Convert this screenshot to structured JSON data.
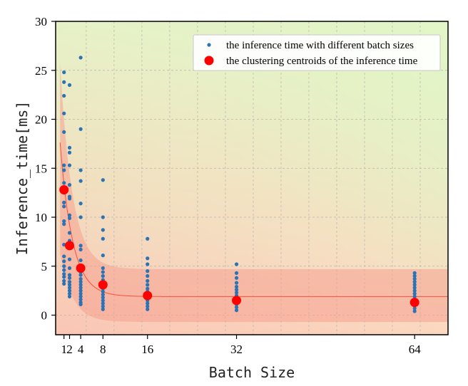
{
  "chart_data": {
    "type": "scatter",
    "xlabel": "Batch Size",
    "ylabel": "Inference_time[ms]",
    "xlim": [
      -0.5,
      70
    ],
    "ylim": [
      -2,
      30
    ],
    "xticks": [
      1,
      2,
      4,
      8,
      16,
      32,
      64
    ],
    "xtick_labels": [
      "1",
      "2",
      "4",
      "8",
      "16",
      "32",
      "64"
    ],
    "yticks": [
      0,
      5,
      10,
      15,
      20,
      25,
      30
    ],
    "ytick_labels": [
      "0",
      "5",
      "10",
      "15",
      "20",
      "25",
      "30"
    ],
    "grid": true,
    "legend_position": "top-right",
    "series": [
      {
        "name": "the inference time with different batch sizes",
        "color": "#2b73b5",
        "points": [
          [
            1,
            24.8
          ],
          [
            1,
            23.8
          ],
          [
            1,
            22.4
          ],
          [
            1,
            20.6
          ],
          [
            1,
            18.7
          ],
          [
            1,
            15.3
          ],
          [
            1,
            14.8
          ],
          [
            1,
            13.5
          ],
          [
            1,
            12.5
          ],
          [
            1,
            11.5
          ],
          [
            1,
            11.1
          ],
          [
            1,
            9.6
          ],
          [
            1,
            9.3
          ],
          [
            1,
            7.2
          ],
          [
            1,
            6.0
          ],
          [
            1,
            5.5
          ],
          [
            1,
            5.0
          ],
          [
            1,
            4.6
          ],
          [
            1,
            4.2
          ],
          [
            1,
            3.9
          ],
          [
            1,
            3.5
          ],
          [
            1,
            3.2
          ],
          [
            2,
            23.5
          ],
          [
            2,
            17.1
          ],
          [
            2,
            16.6
          ],
          [
            2,
            15.3
          ],
          [
            2,
            13.3
          ],
          [
            2,
            12.1
          ],
          [
            2,
            11.9
          ],
          [
            2,
            10.2
          ],
          [
            2,
            9.9
          ],
          [
            2,
            8.4
          ],
          [
            2,
            7.6
          ],
          [
            2,
            5.7
          ],
          [
            2,
            4.8
          ],
          [
            2,
            4.1
          ],
          [
            2,
            3.8
          ],
          [
            2,
            3.4
          ],
          [
            2,
            3.1
          ],
          [
            2,
            2.8
          ],
          [
            2,
            2.5
          ],
          [
            2,
            2.2
          ],
          [
            2,
            1.9
          ],
          [
            4,
            26.3
          ],
          [
            4,
            19.0
          ],
          [
            4,
            14.8
          ],
          [
            4,
            13.7
          ],
          [
            4,
            11.4
          ],
          [
            4,
            10.0
          ],
          [
            4,
            7.1
          ],
          [
            4,
            6.7
          ],
          [
            4,
            5.6
          ],
          [
            4,
            4.4
          ],
          [
            4,
            4.1
          ],
          [
            4,
            3.7
          ],
          [
            4,
            3.4
          ],
          [
            4,
            3.1
          ],
          [
            4,
            2.8
          ],
          [
            4,
            2.5
          ],
          [
            4,
            2.2
          ],
          [
            4,
            1.9
          ],
          [
            4,
            1.6
          ],
          [
            4,
            1.3
          ],
          [
            4,
            1.1
          ],
          [
            8,
            13.8
          ],
          [
            8,
            10.0
          ],
          [
            8,
            8.7
          ],
          [
            8,
            7.8
          ],
          [
            8,
            6.1
          ],
          [
            8,
            4.8
          ],
          [
            8,
            4.4
          ],
          [
            8,
            4.0
          ],
          [
            8,
            3.6
          ],
          [
            8,
            3.3
          ],
          [
            8,
            3.0
          ],
          [
            8,
            2.7
          ],
          [
            8,
            2.4
          ],
          [
            8,
            2.1
          ],
          [
            8,
            1.8
          ],
          [
            8,
            1.5
          ],
          [
            8,
            1.2
          ],
          [
            8,
            0.9
          ],
          [
            8,
            0.6
          ],
          [
            16,
            7.8
          ],
          [
            16,
            5.8
          ],
          [
            16,
            5.2
          ],
          [
            16,
            4.5
          ],
          [
            16,
            4.0
          ],
          [
            16,
            3.5
          ],
          [
            16,
            3.1
          ],
          [
            16,
            2.7
          ],
          [
            16,
            2.4
          ],
          [
            16,
            2.1
          ],
          [
            16,
            1.8
          ],
          [
            16,
            1.5
          ],
          [
            16,
            1.2
          ],
          [
            16,
            0.9
          ],
          [
            16,
            0.6
          ],
          [
            32,
            5.2
          ],
          [
            32,
            4.3
          ],
          [
            32,
            3.8
          ],
          [
            32,
            3.3
          ],
          [
            32,
            2.9
          ],
          [
            32,
            2.6
          ],
          [
            32,
            2.3
          ],
          [
            32,
            2.0
          ],
          [
            32,
            1.7
          ],
          [
            32,
            1.4
          ],
          [
            32,
            1.1
          ],
          [
            32,
            0.8
          ],
          [
            32,
            0.5
          ],
          [
            64,
            4.3
          ],
          [
            64,
            4.0
          ],
          [
            64,
            3.7
          ],
          [
            64,
            3.4
          ],
          [
            64,
            3.1
          ],
          [
            64,
            2.8
          ],
          [
            64,
            2.5
          ],
          [
            64,
            2.2
          ],
          [
            64,
            1.9
          ],
          [
            64,
            1.6
          ],
          [
            64,
            1.3
          ],
          [
            64,
            1.0
          ],
          [
            64,
            0.7
          ],
          [
            64,
            0.4
          ]
        ]
      },
      {
        "name": "the clustering centroids of the inference time",
        "color": "#ff0000",
        "points": [
          [
            1,
            12.8
          ],
          [
            2,
            7.1
          ],
          [
            4,
            4.8
          ],
          [
            8,
            3.1
          ],
          [
            16,
            2.0
          ],
          [
            32,
            1.5
          ],
          [
            64,
            1.3
          ]
        ]
      }
    ],
    "fit_curve": {
      "color": "#ff4d3d",
      "x_start": 0.3,
      "x_end": 70,
      "plateau": 1.9,
      "amplitude": 18,
      "decay": 0.45
    },
    "confidence_band": {
      "color": "#f5a090",
      "upper_plateau": 4.7,
      "lower_plateau": -0.7,
      "upper_amplitude": 24,
      "lower_amplitude": 8
    }
  }
}
